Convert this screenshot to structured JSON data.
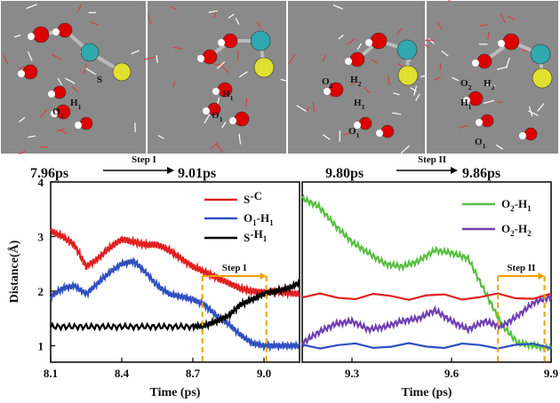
{
  "snapshots": {
    "times": [
      "7.96ps",
      "9.01ps",
      "9.80ps",
      "9.86ps"
    ],
    "step_labels": [
      "Step I",
      "Step II"
    ],
    "panel_labels": [
      [
        {
          "t": "O",
          "s": "1"
        },
        {
          "t": "H",
          "s": "1"
        },
        {
          "t": "S",
          "s": ""
        }
      ],
      [
        {
          "t": "H",
          "s": "1"
        },
        {
          "t": "O",
          "s": "1"
        }
      ],
      [
        {
          "t": "O",
          "s": "2"
        },
        {
          "t": "H",
          "s": "2"
        },
        {
          "t": "H",
          "s": "1"
        },
        {
          "t": "O",
          "s": "1"
        }
      ],
      [
        {
          "t": "O",
          "s": "2"
        },
        {
          "t": "H",
          "s": "2"
        },
        {
          "t": "H",
          "s": "1"
        },
        {
          "t": "O",
          "s": "1"
        }
      ]
    ]
  },
  "colors": {
    "red": "#e02020",
    "blue": "#3050c0",
    "black": "#000000",
    "green": "#58c040",
    "purple": "#7040b0",
    "orange": "#f0a000",
    "snapshot_bg": "#8a8a8a",
    "oxygen": "#dd0000",
    "hydrogen": "#ffffff",
    "carbon": "#30a8b0",
    "sulfur": "#e0e030"
  },
  "chart_data": [
    {
      "type": "line",
      "xlabel": "Time (ps)",
      "ylabel": "Distance(Å)",
      "xlim": [
        8.1,
        9.15
      ],
      "ylim": [
        0.7,
        4.0
      ],
      "xticks": [
        "8.1",
        "8.4",
        "8.7",
        "9.0"
      ],
      "yticks": [
        "1",
        "2",
        "3",
        "4"
      ],
      "legend": "top-right",
      "annotation": {
        "label": "Step I",
        "x_start": 8.74,
        "x_end": 9.01
      },
      "series": [
        {
          "name": "S-C",
          "color_key": "red",
          "x": [
            8.1,
            8.15,
            8.2,
            8.25,
            8.3,
            8.35,
            8.4,
            8.45,
            8.5,
            8.55,
            8.6,
            8.65,
            8.7,
            8.75,
            8.8,
            8.85,
            8.9,
            8.95,
            9.0,
            9.05,
            9.1,
            9.15
          ],
          "values": [
            3.1,
            3.0,
            2.85,
            2.45,
            2.6,
            2.8,
            2.95,
            2.9,
            2.85,
            2.85,
            2.75,
            2.6,
            2.45,
            2.35,
            2.25,
            2.15,
            2.05,
            2.0,
            1.98,
            2.0,
            1.97,
            1.95
          ]
        },
        {
          "name": "O1-H1",
          "color_key": "blue",
          "x": [
            8.1,
            8.15,
            8.2,
            8.25,
            8.3,
            8.35,
            8.4,
            8.45,
            8.5,
            8.55,
            8.6,
            8.65,
            8.7,
            8.75,
            8.8,
            8.85,
            8.9,
            8.95,
            9.0,
            9.05,
            9.1,
            9.15
          ],
          "values": [
            1.9,
            2.05,
            2.1,
            1.95,
            2.15,
            2.35,
            2.5,
            2.55,
            2.35,
            2.1,
            1.95,
            1.9,
            1.85,
            1.75,
            1.55,
            1.4,
            1.2,
            1.05,
            1.0,
            1.0,
            1.0,
            1.0
          ]
        },
        {
          "name": "S-H1",
          "color_key": "black",
          "x": [
            8.1,
            8.2,
            8.3,
            8.4,
            8.5,
            8.6,
            8.7,
            8.75,
            8.8,
            8.85,
            8.9,
            8.95,
            9.0,
            9.05,
            9.1,
            9.15
          ],
          "values": [
            1.35,
            1.35,
            1.35,
            1.35,
            1.35,
            1.35,
            1.35,
            1.37,
            1.45,
            1.55,
            1.75,
            1.85,
            1.95,
            2.0,
            2.05,
            2.15
          ]
        }
      ]
    },
    {
      "type": "line",
      "xlabel": "Time (ps)",
      "ylabel": "",
      "xlim": [
        9.15,
        9.9
      ],
      "ylim": [
        0.7,
        4.0
      ],
      "xticks": [
        "9.3",
        "9.6",
        "9.9"
      ],
      "yticks": [],
      "legend": "top-right",
      "annotation": {
        "label": "Step II",
        "x_start": 9.74,
        "x_end": 9.88
      },
      "series": [
        {
          "name": "O2-H1",
          "color_key": "green",
          "x": [
            9.15,
            9.2,
            9.25,
            9.3,
            9.35,
            9.4,
            9.45,
            9.5,
            9.55,
            9.6,
            9.65,
            9.7,
            9.75,
            9.8,
            9.85,
            9.9
          ],
          "values": [
            3.7,
            3.55,
            3.2,
            2.9,
            2.7,
            2.5,
            2.45,
            2.55,
            2.75,
            2.7,
            2.6,
            2.0,
            1.4,
            1.05,
            1.0,
            0.95
          ]
        },
        {
          "name": "O2-H2",
          "color_key": "purple",
          "x": [
            9.15,
            9.2,
            9.25,
            9.3,
            9.35,
            9.4,
            9.45,
            9.5,
            9.55,
            9.6,
            9.65,
            9.7,
            9.75,
            9.8,
            9.85,
            9.9
          ],
          "values": [
            1.05,
            1.25,
            1.4,
            1.45,
            1.3,
            1.35,
            1.45,
            1.5,
            1.65,
            1.45,
            1.3,
            1.45,
            1.35,
            1.55,
            1.8,
            1.9
          ]
        },
        {
          "name": "S-C",
          "color_key": "red",
          "legend": false,
          "x": [
            9.15,
            9.9
          ],
          "values": [
            1.9,
            1.9
          ]
        },
        {
          "name": "O1-H1",
          "color_key": "blue",
          "legend": false,
          "x": [
            9.15,
            9.9
          ],
          "values": [
            1.0,
            1.0
          ]
        }
      ]
    }
  ]
}
